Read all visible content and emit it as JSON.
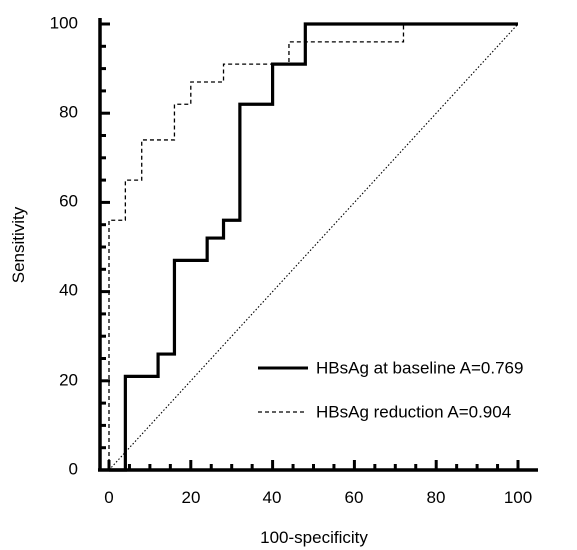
{
  "chart_data": {
    "type": "line",
    "title": "",
    "xlabel": "100-specificity",
    "ylabel": "Sensitivity",
    "xlim": [
      0,
      100
    ],
    "ylim": [
      0,
      100
    ],
    "xticks": [
      "0",
      "20",
      "40",
      "60",
      "80",
      "100"
    ],
    "yticks": [
      "0",
      "20",
      "40",
      "60",
      "80",
      "100"
    ],
    "grid": false,
    "legend_position": "bottom-right",
    "series": [
      {
        "name": "HBsAg at baseline A=0.769",
        "style": "solid",
        "color": "#000000",
        "points": [
          [
            0,
            0
          ],
          [
            4,
            0
          ],
          [
            4,
            21
          ],
          [
            12,
            21
          ],
          [
            12,
            26
          ],
          [
            16,
            26
          ],
          [
            16,
            47
          ],
          [
            24,
            47
          ],
          [
            24,
            52
          ],
          [
            28,
            52
          ],
          [
            28,
            56
          ],
          [
            32,
            56
          ],
          [
            32,
            82
          ],
          [
            40,
            82
          ],
          [
            40,
            91
          ],
          [
            48,
            91
          ],
          [
            48,
            100
          ],
          [
            100,
            100
          ]
        ]
      },
      {
        "name": "HBsAg reduction A=0.904",
        "style": "dashed",
        "color": "#000000",
        "points": [
          [
            0,
            0
          ],
          [
            0,
            56
          ],
          [
            4,
            56
          ],
          [
            4,
            65
          ],
          [
            8,
            65
          ],
          [
            8,
            74
          ],
          [
            16,
            74
          ],
          [
            16,
            82
          ],
          [
            20,
            82
          ],
          [
            20,
            87
          ],
          [
            28,
            87
          ],
          [
            28,
            91
          ],
          [
            44,
            91
          ],
          [
            44,
            96
          ],
          [
            72,
            96
          ],
          [
            72,
            100
          ],
          [
            100,
            100
          ]
        ]
      },
      {
        "name": "",
        "style": "dotted",
        "color": "#000000",
        "points": [
          [
            0,
            0
          ],
          [
            100,
            100
          ]
        ]
      }
    ]
  }
}
